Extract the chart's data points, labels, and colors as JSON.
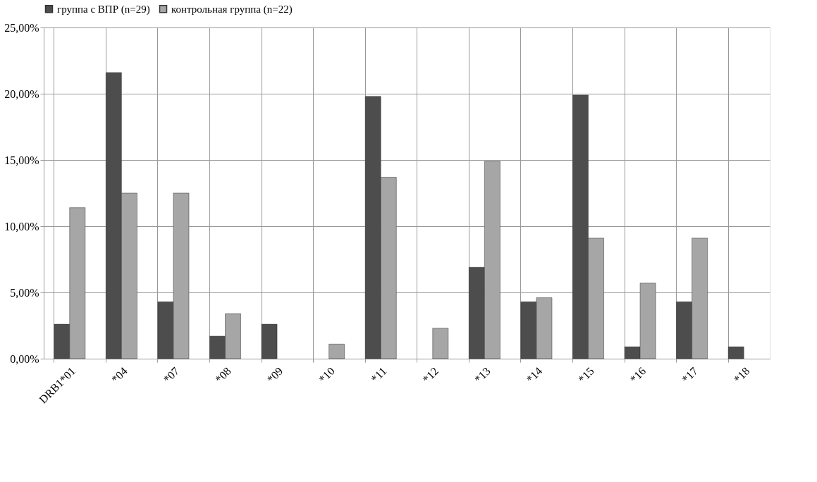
{
  "chart_data": {
    "type": "bar",
    "categories": [
      "DRB1*01",
      "*04",
      "*07",
      "*08",
      "*09",
      "*10",
      "*11",
      "*12",
      "*13",
      "*14",
      "*15",
      "*16",
      "*17",
      "*18"
    ],
    "series": [
      {
        "name": "группа с ВПР (n=29)",
        "color": "#4d4d4d",
        "values": [
          2.6,
          21.6,
          4.3,
          1.7,
          2.6,
          null,
          19.8,
          null,
          6.9,
          4.3,
          19.9,
          0.9,
          4.3,
          0.9
        ]
      },
      {
        "name": "контрольная группа (n=22)",
        "color": "#a6a6a6",
        "values": [
          11.4,
          12.5,
          12.5,
          3.4,
          null,
          1.1,
          13.7,
          2.3,
          14.9,
          4.6,
          9.1,
          5.7,
          9.1,
          null
        ]
      }
    ],
    "ylim": [
      0,
      25
    ],
    "yticks": [
      {
        "value": 0,
        "label": "0,00%"
      },
      {
        "value": 5,
        "label": "5,00%"
      },
      {
        "value": 10,
        "label": "10,00%"
      },
      {
        "value": 15,
        "label": "15,00%"
      },
      {
        "value": 20,
        "label": "20,00%"
      },
      {
        "value": 25,
        "label": "25,00%"
      }
    ],
    "grid": true,
    "legend": "top"
  }
}
